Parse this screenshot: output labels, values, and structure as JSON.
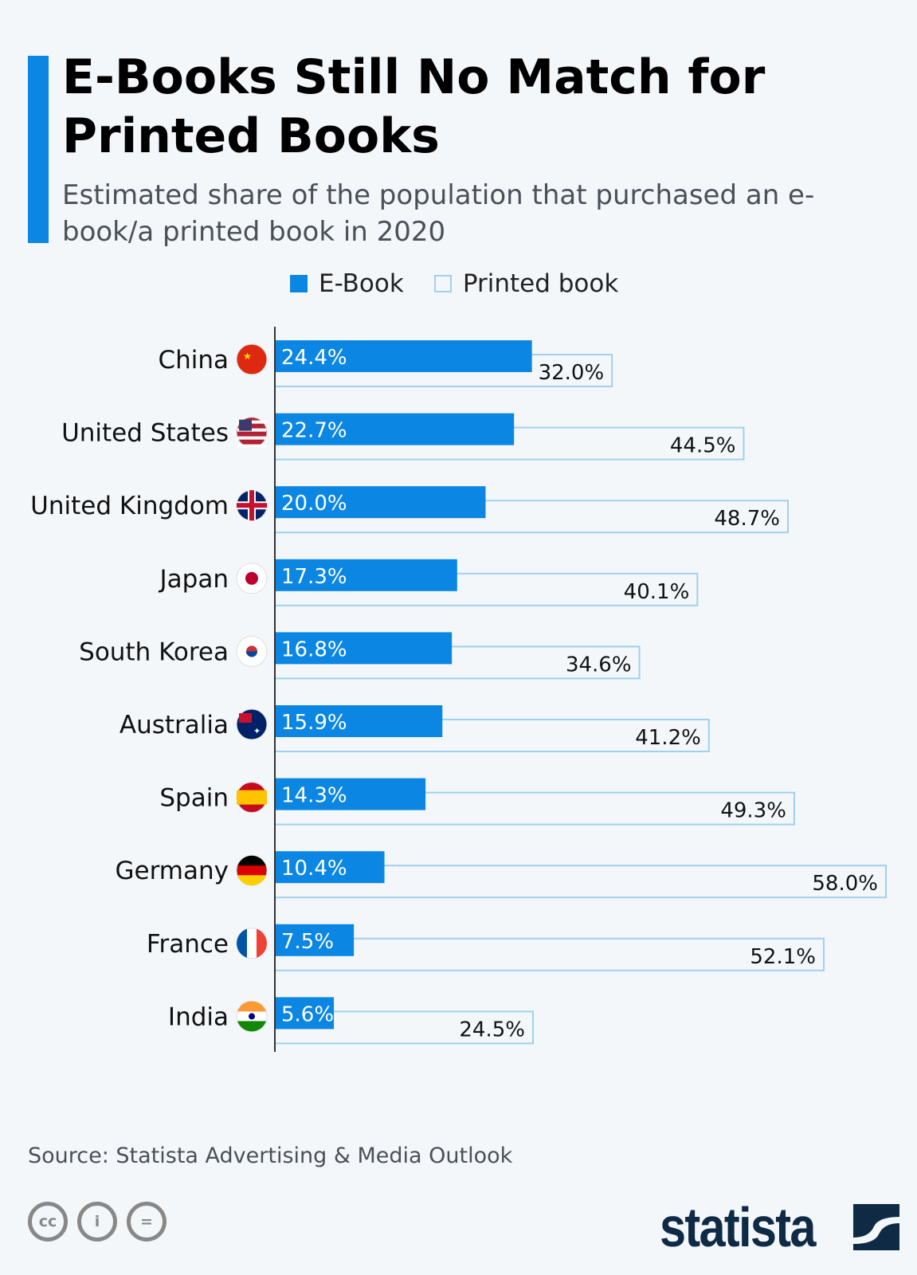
{
  "title": "E-Books Still No Match for Printed Books",
  "subtitle": "Estimated share of the population that purchased an e-book/a printed book in 2020",
  "source": "Source: Statista Advertising & Media Outlook",
  "brand": "statista",
  "license_icons": [
    "cc-icon",
    "by-icon",
    "nd-icon"
  ],
  "colors": {
    "ebook": "#0b86e3",
    "printed_border": "#9fd0f0",
    "background": "#f4f7fa"
  },
  "chart_data": {
    "type": "bar",
    "orientation": "horizontal",
    "categories": [
      "China",
      "United States",
      "United Kingdom",
      "Japan",
      "South Korea",
      "Australia",
      "Spain",
      "Germany",
      "France",
      "India"
    ],
    "series": [
      {
        "name": "E-Book",
        "values": [
          24.4,
          22.7,
          20.0,
          17.3,
          16.8,
          15.9,
          14.3,
          10.4,
          7.5,
          5.6
        ],
        "labels": [
          "24.4%",
          "22.7%",
          "20.0%",
          "17.3%",
          "16.8%",
          "15.9%",
          "14.3%",
          "10.4%",
          "7.5%",
          "5.6%"
        ]
      },
      {
        "name": "Printed book",
        "values": [
          32.0,
          44.5,
          48.7,
          40.1,
          34.6,
          41.2,
          49.3,
          58.0,
          52.1,
          24.5
        ],
        "labels": [
          "32.0%",
          "44.5%",
          "48.7%",
          "40.1%",
          "34.6%",
          "41.2%",
          "49.3%",
          "58.0%",
          "52.1%",
          "24.5%"
        ]
      }
    ],
    "unit": "%",
    "xlim": [
      0,
      58
    ],
    "legend_position": "top",
    "grid": false
  }
}
